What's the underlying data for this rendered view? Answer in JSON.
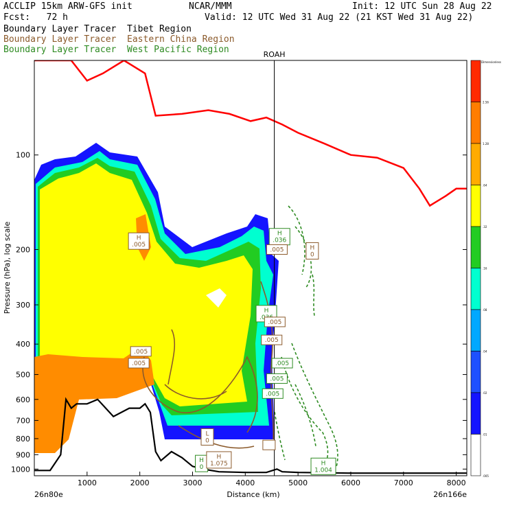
{
  "header": {
    "model": "ACCLIP 15km ARW-GFS init",
    "org": "NCAR/MMM",
    "init": "Init: 12 UTC Sun 28 Aug 22",
    "fcst": "Fcst:   72 h",
    "valid": "Valid: 12 UTC Wed 31 Aug 22 (21 KST Wed 31 Aug 22)"
  },
  "legend": [
    {
      "text": "Boundary Layer Tracer  Tibet Region",
      "color": "#000000"
    },
    {
      "text": "Boundary Layer Tracer  Eastern China Region",
      "color": "#8b5a2b"
    },
    {
      "text": "Boundary Layer Tracer  West Pacific Region",
      "color": "#2e8b22"
    }
  ],
  "chart_data": {
    "type": "heatmap",
    "xlabel": "Distance (km)",
    "ylabel": "Pressure (hPa), log scale",
    "xlim": [
      0,
      8200
    ],
    "ylim": [
      1050,
      50
    ],
    "y_scale": "log",
    "x_ticks": [
      1000,
      2000,
      3000,
      4000,
      5000,
      6000,
      7000,
      8000
    ],
    "y_ticks": [
      100,
      200,
      300,
      400,
      500,
      600,
      700,
      800,
      900,
      1000
    ],
    "x_start_label": "26n80e",
    "x_end_label": "26n166e",
    "station": {
      "name": "ROAH",
      "x": 4550
    },
    "colorbar": {
      "title": "Dimensionless",
      "levels": [
        "2.56",
        "1.28",
        ".64",
        ".32",
        ".16",
        ".08",
        ".04",
        ".02",
        ".01",
        ".005"
      ],
      "colors": [
        "#ff2a00",
        "#ff7d00",
        "#ffab00",
        "#ffff00",
        "#22cc22",
        "#00ffd0",
        "#00a8ff",
        "#1e50ff",
        "#1414ff",
        "#ffffff"
      ]
    },
    "tropopause_line": {
      "color": "#ff0000",
      "x": [
        0,
        700,
        1000,
        1300,
        1700,
        2100,
        2300,
        2800,
        3300,
        3700,
        4100,
        4400,
        4700,
        5000,
        5500,
        6000,
        6500,
        7000,
        7300,
        7500,
        7800,
        8000,
        8200
      ],
      "p": [
        50,
        50,
        58,
        55,
        50,
        55,
        75,
        74,
        72,
        74,
        78,
        76,
        80,
        85,
        92,
        100,
        102,
        110,
        128,
        145,
        135,
        128,
        128
      ]
    },
    "terrain_line": {
      "color": "#000000",
      "x": [
        0,
        300,
        500,
        600,
        700,
        800,
        1000,
        1200,
        1500,
        1800,
        2000,
        2100,
        2200,
        2300,
        2400,
        2600,
        2800,
        3000,
        3200,
        3500,
        4000,
        4400,
        4600,
        4700,
        5000,
        6000,
        7000,
        8200
      ],
      "p": [
        1010,
        1010,
        900,
        600,
        640,
        620,
        620,
        600,
        680,
        640,
        640,
        620,
        660,
        880,
        940,
        880,
        920,
        980,
        1000,
        1020,
        1025,
        1025,
        1000,
        1020,
        1025,
        1030,
        1030,
        1030
      ]
    },
    "labels": [
      {
        "text": "H",
        "value": ".005",
        "x": 1980,
        "p": 188,
        "color": "#8b5a2b"
      },
      {
        "text": "",
        "value": ".005",
        "x": 2020,
        "p": 422,
        "color": "#8b5a2b"
      },
      {
        "text": "",
        "value": ".005",
        "x": 1980,
        "p": 460,
        "color": "#8b5a2b"
      },
      {
        "text": "H",
        "value": ".036",
        "x": 4400,
        "p": 320,
        "color": "#2e8b22"
      },
      {
        "text": "H",
        "value": ".036",
        "x": 4650,
        "p": 182,
        "color": "#2e8b22"
      },
      {
        "text": "",
        "value": ".005",
        "x": 4600,
        "p": 200,
        "color": "#8b5a2b"
      },
      {
        "text": "H",
        "value": "0",
        "x": 5270,
        "p": 202,
        "color": "#8b5a2b"
      },
      {
        "text": "",
        "value": ".005",
        "x": 4560,
        "p": 340,
        "color": "#8b5a2b"
      },
      {
        "text": "",
        "value": ".005",
        "x": 4500,
        "p": 388,
        "color": "#8b5a2b"
      },
      {
        "text": "",
        "value": ".005",
        "x": 4700,
        "p": 460,
        "color": "#2e8b22"
      },
      {
        "text": "",
        "value": ".005",
        "x": 4600,
        "p": 515,
        "color": "#2e8b22"
      },
      {
        "text": "",
        "value": ".005",
        "x": 4520,
        "p": 575,
        "color": "#2e8b22"
      },
      {
        "text": "L",
        "value": "0",
        "x": 3280,
        "p": 790,
        "color": "#8b5a2b"
      },
      {
        "text": "",
        "value": "",
        "x": 4450,
        "p": 838,
        "color": "#8b5a2b"
      },
      {
        "text": "H",
        "value": "0",
        "x": 3170,
        "p": 960,
        "color": "#2e8b22"
      },
      {
        "text": "H",
        "value": "1.075",
        "x": 3500,
        "p": 935,
        "color": "#8b5a2b"
      },
      {
        "text": "H",
        "value": "1.004",
        "x": 5480,
        "p": 980,
        "color": "#2e8b22"
      }
    ]
  }
}
